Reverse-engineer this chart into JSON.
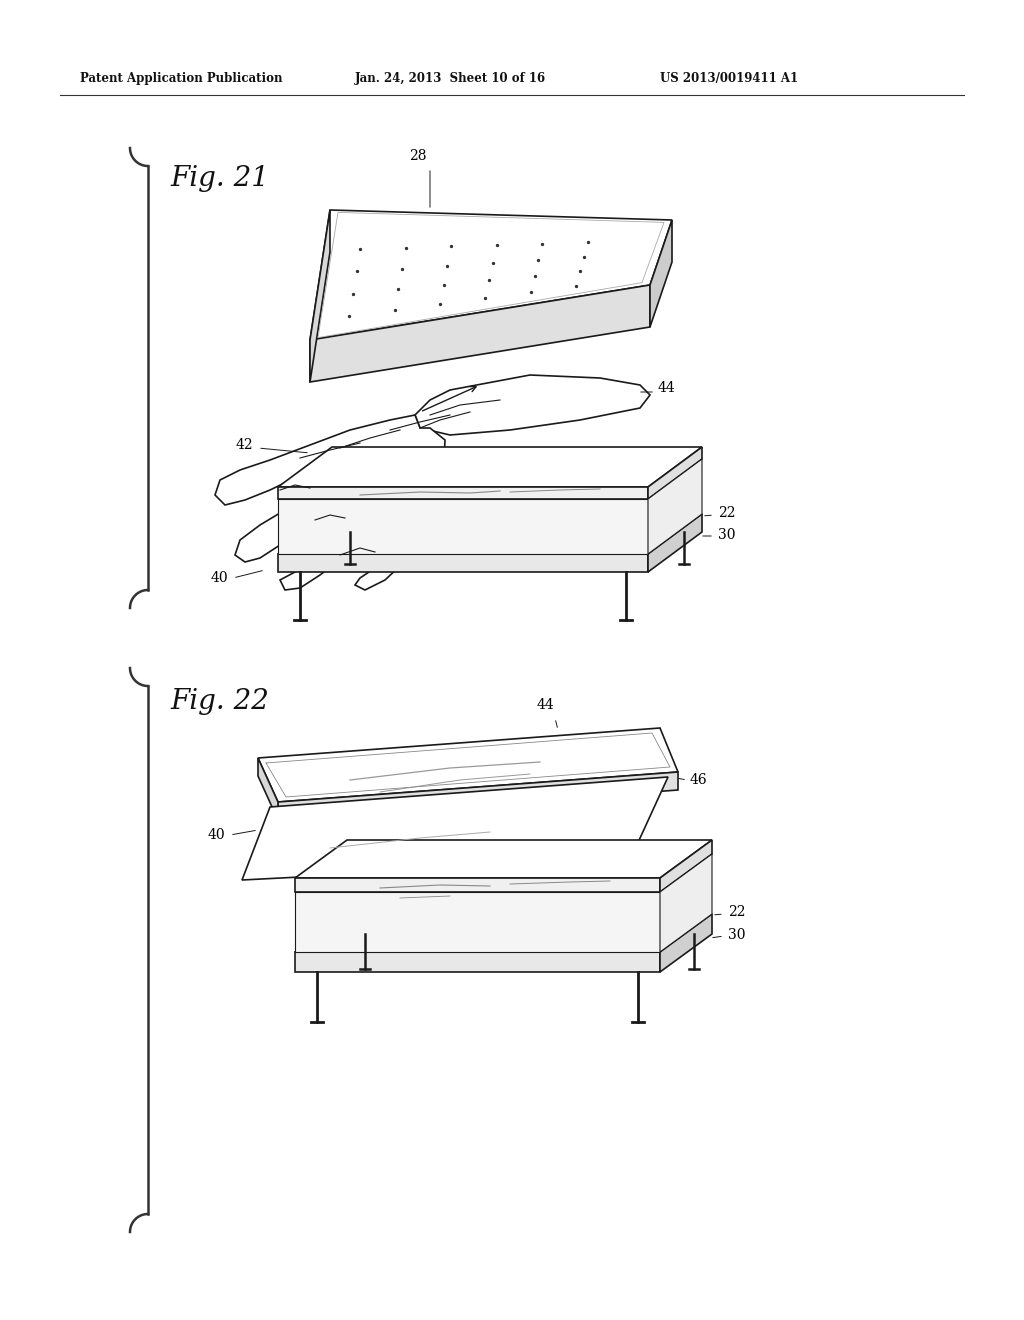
{
  "background_color": "#ffffff",
  "header_text": "Patent Application Publication",
  "header_date": "Jan. 24, 2013  Sheet 10 of 16",
  "header_patent": "US 2013/0019411 A1",
  "fig21_label": "Fig. 21",
  "fig22_label": "Fig. 22",
  "line_color": "#1a1a1a",
  "gray_light": "#e8e8e8",
  "gray_mid": "#d0d0d0"
}
